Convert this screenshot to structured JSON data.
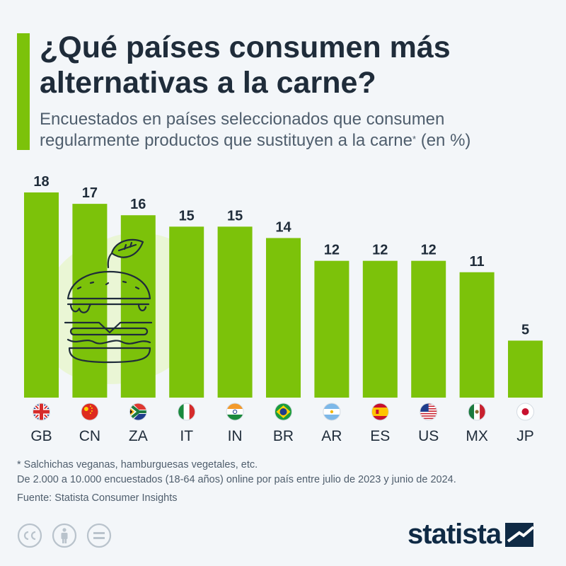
{
  "header": {
    "title_line1": "¿Qué países consumen más",
    "title_line2": "alternativas a la carne?",
    "subtitle_line1": "Encuestados en países seleccionados que consumen",
    "subtitle_line2_a": "regularmente productos que sustituyen a la carne",
    "subtitle_sup": "*",
    "subtitle_line2_b": " (en %)"
  },
  "chart_data": {
    "type": "bar",
    "categories": [
      "GB",
      "CN",
      "ZA",
      "IT",
      "IN",
      "BR",
      "AR",
      "ES",
      "US",
      "MX",
      "JP"
    ],
    "values": [
      18,
      17,
      16,
      15,
      15,
      14,
      12,
      12,
      12,
      11,
      5
    ],
    "ylim": [
      0,
      18
    ],
    "grid": false,
    "bar_color": "#7cc20a",
    "value_labels": [
      "18",
      "17",
      "16",
      "15",
      "15",
      "14",
      "12",
      "12",
      "12",
      "11",
      "5"
    ]
  },
  "footer": {
    "note1": "* Salchichas veganas, hamburguesas vegetales, etc.",
    "note2": "De 2.000 a 10.000 encuestados (18-64 años) online por país entre julio de 2023 y junio de 2024.",
    "source": "Fuente: Statista Consumer Insights",
    "logo": "statista"
  },
  "icons": [
    "burger-leaf-icon",
    "flag-icon",
    "cc-icon",
    "person-icon",
    "equals-icon",
    "statista-logo-icon"
  ],
  "colors": {
    "accent": "#7cc20a",
    "background": "#f3f6f9",
    "text_dark": "#1f2c3a",
    "text_muted": "#4f5e6d",
    "illustration_bg": "#e9f5d3"
  }
}
